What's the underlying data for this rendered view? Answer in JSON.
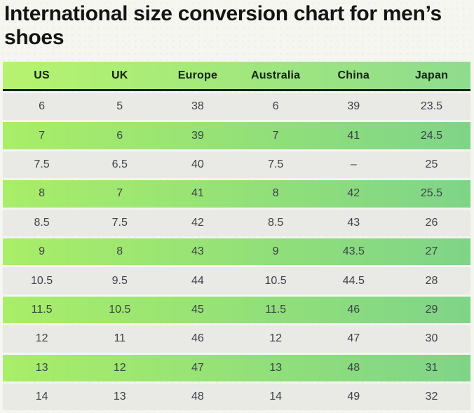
{
  "page": {
    "title": "International size conversion chart for men’s shoes"
  },
  "chart_data": {
    "type": "table",
    "title": "International size conversion chart for men’s shoes",
    "columns": [
      "US",
      "UK",
      "Europe",
      "Australia",
      "China",
      "Japan"
    ],
    "rows": [
      [
        "6",
        "5",
        "38",
        "6",
        "39",
        "23.5"
      ],
      [
        "7",
        "6",
        "39",
        "7",
        "41",
        "24.5"
      ],
      [
        "7.5",
        "6.5",
        "40",
        "7.5",
        "–",
        "25"
      ],
      [
        "8",
        "7",
        "41",
        "8",
        "42",
        "25.5"
      ],
      [
        "8.5",
        "7.5",
        "42",
        "8.5",
        "43",
        "26"
      ],
      [
        "9",
        "8",
        "43",
        "9",
        "43.5",
        "27"
      ],
      [
        "10.5",
        "9.5",
        "44",
        "10.5",
        "44.5",
        "28"
      ],
      [
        "11.5",
        "10.5",
        "45",
        "11.5",
        "46",
        "29"
      ],
      [
        "12",
        "11",
        "46",
        "12",
        "47",
        "30"
      ],
      [
        "13",
        "12",
        "47",
        "13",
        "48",
        "31"
      ],
      [
        "14",
        "13",
        "48",
        "14",
        "49",
        "32"
      ]
    ],
    "layout": {
      "striped": true,
      "first_data_row_style": "gray",
      "legend": "none",
      "grid": "off"
    }
  },
  "colors": {
    "page_background": "#f5f6f0",
    "header_gradient_left": "#b6f36e",
    "header_gradient_right": "#8edc8d",
    "green_row_gradient_left": "#a9ee68",
    "green_row_gradient_right": "#7fd488",
    "gray_row": "#e9e9e6",
    "header_underline": "#0d2916",
    "header_text": "#122313",
    "cell_text": "#3d4247",
    "title_text": "#141414"
  }
}
